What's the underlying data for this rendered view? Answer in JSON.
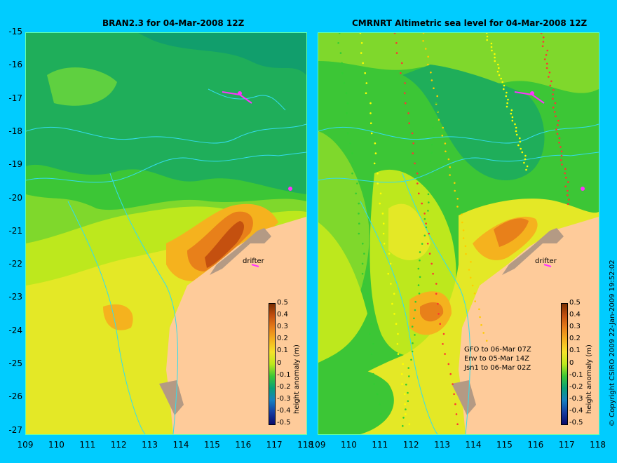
{
  "left_title": "BRAN2.3 for 04-Mar-2008 12Z",
  "right_title": "CMRNRT Altimetric sea level  for 04-Mar-2008 12Z",
  "y_ticks": [
    "-15",
    "-16",
    "-17",
    "-18",
    "-19",
    "-20",
    "-21",
    "-22",
    "-23",
    "-24",
    "-25",
    "-26",
    "-27"
  ],
  "x_ticks": [
    "109",
    "110",
    "111",
    "112",
    "113",
    "114",
    "115",
    "116",
    "117",
    "118"
  ],
  "colorbar": {
    "title": "height anomaly (m)",
    "labels": [
      "0.5",
      "0.4",
      "0.3",
      "0.2",
      "0.1",
      "0",
      "-0.1",
      "-0.2",
      "-0.3",
      "-0.4",
      "-0.5"
    ],
    "colors": [
      "#7a2e00",
      "#c4500f",
      "#e8801a",
      "#f5b21e",
      "#f6e22a",
      "#bde81d",
      "#3cc636",
      "#0aa078",
      "#1780c0",
      "#163ca0",
      "#0a0a6a"
    ]
  },
  "drifter_label": "drifter",
  "satellite_lines": [
    "GFO to 06-Mar 07Z",
    "Env to 05-Mar 14Z",
    "Jsn1 to 06-Mar 02Z"
  ],
  "copyright": "© Copyright CSIRO 2009   22-Jan-2009 19:52:02"
}
